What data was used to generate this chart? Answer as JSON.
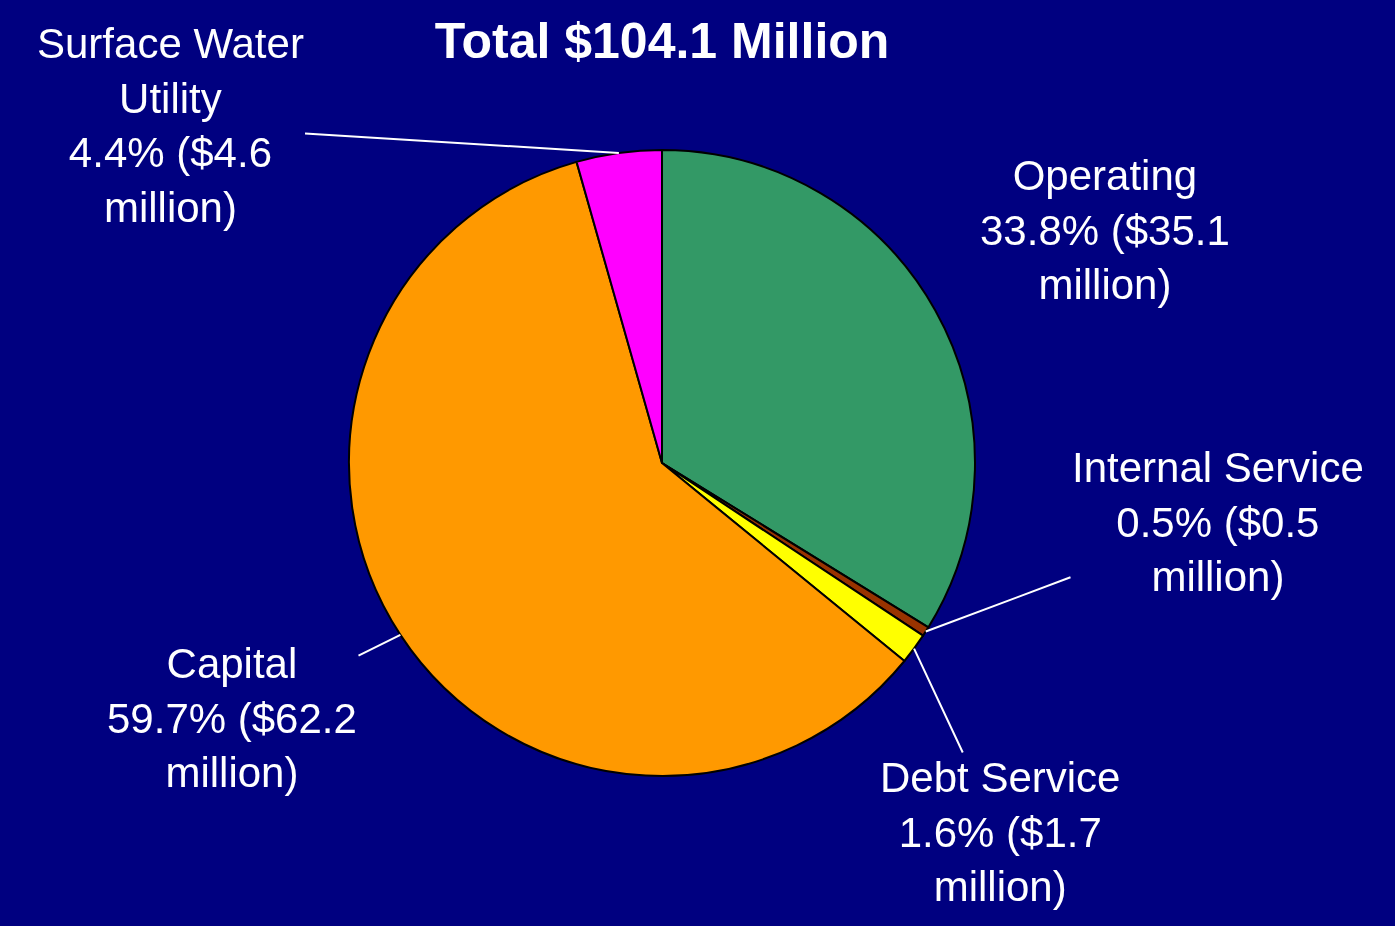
{
  "chart_data": {
    "type": "pie",
    "title": "Total $104.1 Million",
    "categories": [
      "Operating",
      "Internal Service",
      "Debt Service",
      "Capital",
      "Surface Water Utility"
    ],
    "values": [
      33.8,
      0.5,
      1.6,
      59.7,
      4.4
    ],
    "value_labels": [
      "33.8% ($35.1 million)",
      "0.5% ($0.5 million)",
      "1.6% ($1.7 million)",
      "59.7% ($62.2 million)",
      "4.4% ($4.6 million)"
    ],
    "colors": [
      "#339966",
      "#993300",
      "#ffff00",
      "#ff9900",
      "#ff00ff"
    ],
    "legend": false
  }
}
